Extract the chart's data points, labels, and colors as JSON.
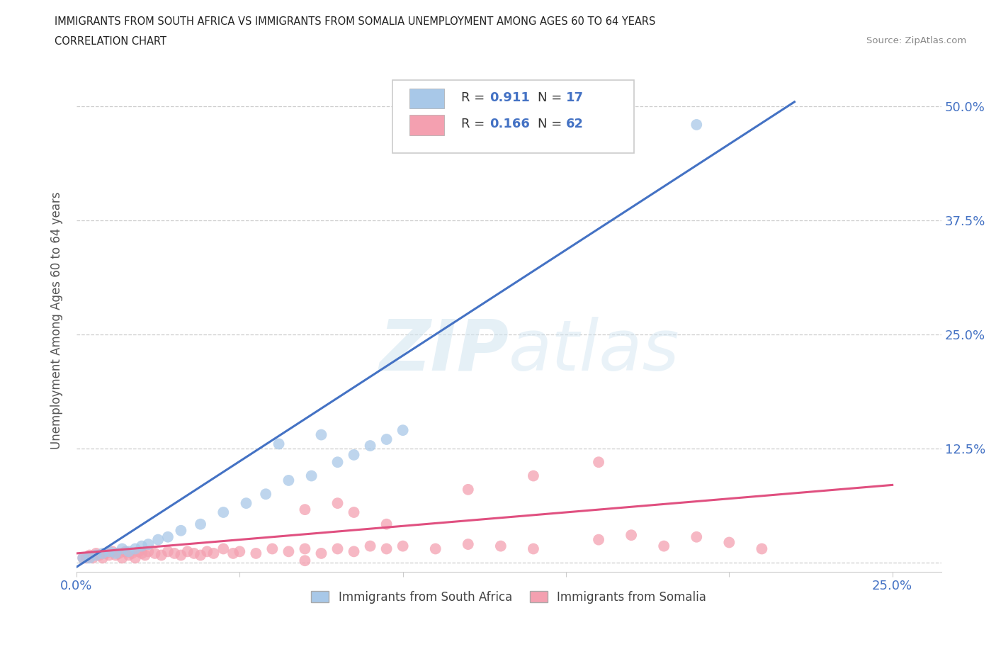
{
  "title_line1": "IMMIGRANTS FROM SOUTH AFRICA VS IMMIGRANTS FROM SOMALIA UNEMPLOYMENT AMONG AGES 60 TO 64 YEARS",
  "title_line2": "CORRELATION CHART",
  "source_text": "Source: ZipAtlas.com",
  "ylabel": "Unemployment Among Ages 60 to 64 years",
  "watermark": "ZIPatlas",
  "xlim": [
    0.0,
    0.265
  ],
  "ylim": [
    -0.01,
    0.54
  ],
  "blue_color": "#a8c8e8",
  "pink_color": "#f4a0b0",
  "blue_line_color": "#4472c4",
  "pink_line_color": "#e05080",
  "legend_label_blue": "Immigrants from South Africa",
  "legend_label_pink": "Immigrants from Somalia",
  "blue_scatter_x": [
    0.002,
    0.004,
    0.006,
    0.008,
    0.01,
    0.012,
    0.014,
    0.016,
    0.018,
    0.02,
    0.022,
    0.025,
    0.028,
    0.032,
    0.038,
    0.045,
    0.052,
    0.058,
    0.065,
    0.072,
    0.08,
    0.085,
    0.09,
    0.095,
    0.1,
    0.062,
    0.075,
    0.19
  ],
  "blue_scatter_y": [
    0.005,
    0.005,
    0.008,
    0.01,
    0.012,
    0.01,
    0.015,
    0.012,
    0.015,
    0.018,
    0.02,
    0.025,
    0.028,
    0.035,
    0.042,
    0.055,
    0.065,
    0.075,
    0.09,
    0.095,
    0.11,
    0.118,
    0.128,
    0.135,
    0.145,
    0.13,
    0.14,
    0.48
  ],
  "pink_scatter_x": [
    0.002,
    0.003,
    0.004,
    0.005,
    0.006,
    0.007,
    0.008,
    0.009,
    0.01,
    0.011,
    0.012,
    0.013,
    0.014,
    0.015,
    0.016,
    0.017,
    0.018,
    0.019,
    0.02,
    0.021,
    0.022,
    0.024,
    0.026,
    0.028,
    0.03,
    0.032,
    0.034,
    0.036,
    0.038,
    0.04,
    0.042,
    0.045,
    0.048,
    0.05,
    0.055,
    0.06,
    0.065,
    0.07,
    0.075,
    0.08,
    0.085,
    0.09,
    0.095,
    0.1,
    0.11,
    0.12,
    0.13,
    0.14,
    0.16,
    0.17,
    0.18,
    0.19,
    0.2,
    0.21,
    0.07,
    0.085,
    0.095,
    0.12,
    0.14,
    0.16,
    0.08,
    0.07
  ],
  "pink_scatter_y": [
    0.005,
    0.005,
    0.008,
    0.005,
    0.01,
    0.008,
    0.005,
    0.01,
    0.008,
    0.012,
    0.008,
    0.01,
    0.005,
    0.012,
    0.008,
    0.01,
    0.005,
    0.012,
    0.01,
    0.008,
    0.012,
    0.01,
    0.008,
    0.012,
    0.01,
    0.008,
    0.012,
    0.01,
    0.008,
    0.012,
    0.01,
    0.015,
    0.01,
    0.012,
    0.01,
    0.015,
    0.012,
    0.015,
    0.01,
    0.015,
    0.012,
    0.018,
    0.015,
    0.018,
    0.015,
    0.02,
    0.018,
    0.015,
    0.025,
    0.03,
    0.018,
    0.028,
    0.022,
    0.015,
    0.058,
    0.055,
    0.042,
    0.08,
    0.095,
    0.11,
    0.065,
    0.002
  ],
  "blue_line_x": [
    0.0,
    0.22
  ],
  "blue_line_y": [
    -0.005,
    0.505
  ],
  "pink_line_x": [
    0.0,
    0.25
  ],
  "pink_line_y": [
    0.01,
    0.085
  ]
}
